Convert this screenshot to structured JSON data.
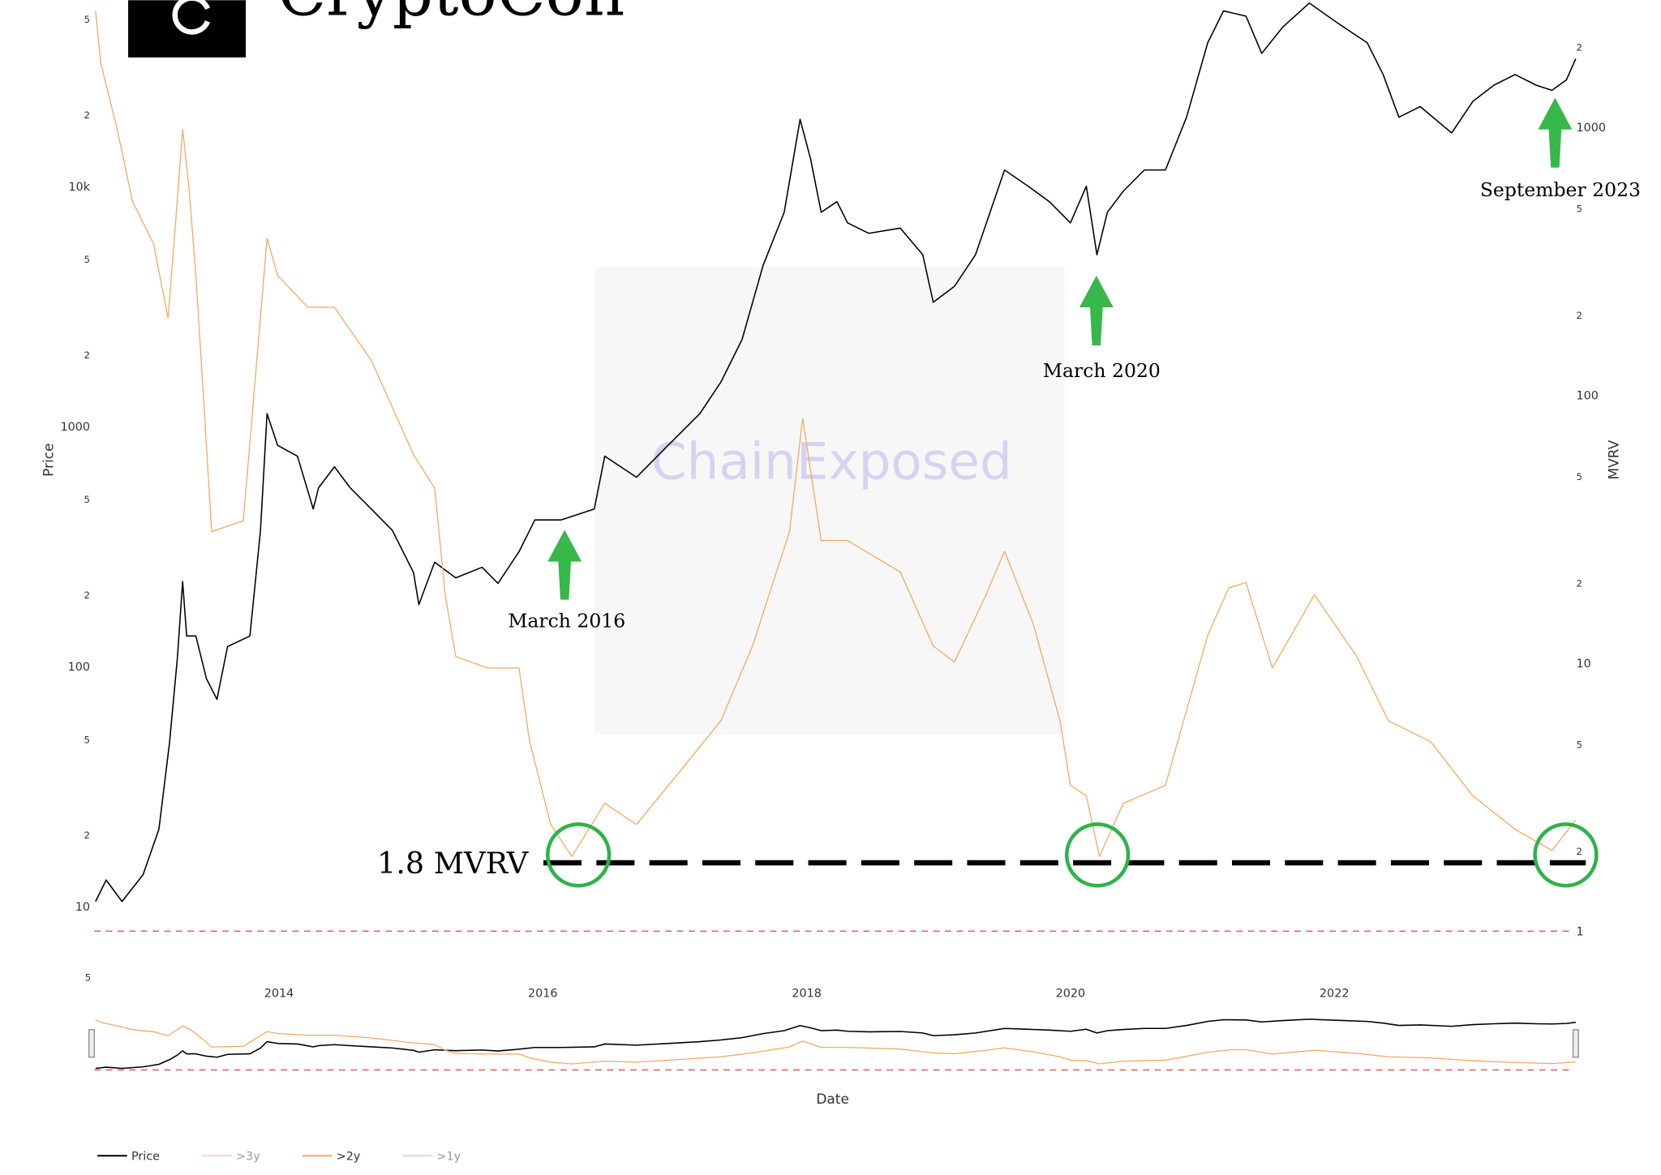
{
  "chart_data": {
    "type": "line",
    "brand": "CryptoCon",
    "watermark": "ChainExposed",
    "y_label": "Price",
    "y2_label": "MVRV",
    "x_label": "Date",
    "log_y": true,
    "log_y2": true,
    "xlim": [
      2012.6,
      2023.85
    ],
    "xticks": [
      2014,
      2016,
      2018,
      2020,
      2022
    ],
    "ylim": [
      7.9,
      59600
    ],
    "yticks": [
      10,
      {
        "value": 20,
        "label": "2"
      },
      {
        "value": 50,
        "label": "5"
      },
      100,
      {
        "value": 200,
        "label": "2"
      },
      {
        "value": 500,
        "label": "5"
      },
      1000,
      {
        "value": 2000,
        "label": "2"
      },
      {
        "value": 5000,
        "label": "5"
      },
      {
        "value": 10000,
        "label": "10k"
      },
      {
        "value": 20000,
        "label": "2"
      },
      {
        "value": 50000,
        "label": "5"
      }
    ],
    "y2lim": [
      1,
      2980
    ],
    "y2ticks": [
      1,
      2,
      5,
      10,
      {
        "value": 20,
        "label": "2"
      },
      {
        "value": 50,
        "label": "5"
      },
      100,
      {
        "value": 200,
        "label": "2"
      },
      {
        "value": 500,
        "label": "5"
      },
      1000,
      {
        "value": 2000,
        "label": "2"
      }
    ],
    "range_slider_label": "5",
    "reference_line": {
      "value": 1,
      "color": "#e06666"
    },
    "threshold": {
      "value": 1.8,
      "label": "1.8 MVRV"
    },
    "annotations": [
      "March 2016",
      "March 2020",
      "September 2023"
    ],
    "series": [
      {
        "name": "Price",
        "color": "#000000",
        "x": [
          2012.61,
          2012.69,
          2012.81,
          2012.97,
          2013.09,
          2013.17,
          2013.23,
          2013.27,
          2013.3,
          2013.37,
          2013.45,
          2013.53,
          2013.61,
          2013.78,
          2013.86,
          2013.91,
          2013.99,
          2014.14,
          2014.26,
          2014.3,
          2014.42,
          2014.54,
          2014.7,
          2014.86,
          2015.02,
          2015.06,
          2015.18,
          2015.34,
          2015.54,
          2015.66,
          2015.82,
          2015.94,
          2016.14,
          2016.39,
          2016.47,
          2016.71,
          2016.95,
          2017.19,
          2017.35,
          2017.51,
          2017.67,
          2017.83,
          2017.95,
          2018.03,
          2018.11,
          2018.23,
          2018.31,
          2018.47,
          2018.71,
          2018.88,
          2018.96,
          2019.12,
          2019.28,
          2019.5,
          2019.68,
          2019.84,
          2020.0,
          2020.12,
          2020.2,
          2020.28,
          2020.4,
          2020.56,
          2020.72,
          2020.88,
          2021.04,
          2021.16,
          2021.33,
          2021.45,
          2021.61,
          2021.81,
          2022.01,
          2022.25,
          2022.37,
          2022.49,
          2022.65,
          2022.89,
          2023.05,
          2023.21,
          2023.37,
          2023.53,
          2023.65,
          2023.76,
          2023.83
        ],
        "values": [
          10.5,
          12.9,
          10.5,
          13.6,
          21,
          48,
          109,
          226,
          134,
          134,
          89,
          73,
          121,
          134,
          369,
          1130,
          834,
          752,
          453,
          555,
          679,
          555,
          453,
          369,
          246,
          181,
          272,
          234,
          259,
          222,
          301,
          408,
          408,
          453,
          752,
          614,
          834,
          1130,
          1530,
          2300,
          4690,
          7800,
          19000,
          13000,
          7800,
          8630,
          7050,
          6370,
          6700,
          5190,
          3290,
          3830,
          5190,
          11700,
          10000,
          8630,
          7050,
          10000,
          5190,
          7800,
          9550,
          11700,
          11700,
          19400,
          39600,
          53800,
          51200,
          35800,
          46100,
          58000,
          48500,
          39600,
          29200,
          19400,
          21500,
          16700,
          22600,
          26400,
          29200,
          26400,
          25100,
          27800,
          34000
        ]
      },
      {
        "name": ">3y",
        "color": "#e8a0b0",
        "visible": false
      },
      {
        "name": ">2y",
        "color": "#f2aa62",
        "axis": "y2",
        "x": [
          2012.61,
          2012.65,
          2012.77,
          2012.89,
          2013.05,
          2013.16,
          2013.21,
          2013.27,
          2013.32,
          2013.37,
          2013.43,
          2013.49,
          2013.73,
          2013.91,
          2013.99,
          2014.22,
          2014.42,
          2014.7,
          2015.02,
          2015.18,
          2015.26,
          2015.34,
          2015.58,
          2015.82,
          2015.9,
          2016.06,
          2016.22,
          2016.47,
          2016.71,
          2017.03,
          2017.35,
          2017.59,
          2017.87,
          2017.97,
          2018.11,
          2018.31,
          2018.71,
          2018.96,
          2019.12,
          2019.36,
          2019.5,
          2019.72,
          2019.92,
          2020.0,
          2020.12,
          2020.22,
          2020.4,
          2020.72,
          2021.04,
          2021.2,
          2021.33,
          2021.53,
          2021.85,
          2022.17,
          2022.41,
          2022.73,
          2023.05,
          2023.37,
          2023.65,
          2023.83
        ],
        "values": [
          2720,
          1730,
          1000,
          529,
          367,
          194,
          403,
          982,
          579,
          280,
          94,
          31,
          34,
          385,
          280,
          213,
          213,
          135,
          60,
          45,
          18,
          10.6,
          9.6,
          9.6,
          5.1,
          2.5,
          1.9,
          3.0,
          2.5,
          3.9,
          6.1,
          11.6,
          31,
          82,
          28.7,
          28.7,
          21.9,
          11.6,
          10.1,
          18,
          26.2,
          13.9,
          6.1,
          3.5,
          3.2,
          1.9,
          3.0,
          3.5,
          12.7,
          19.1,
          20,
          9.6,
          18,
          10.6,
          6.1,
          5.1,
          3.2,
          2.4,
          2.0,
          2.6
        ]
      },
      {
        "name": ">1y",
        "color": "#b0a8e0",
        "visible": false
      }
    ]
  }
}
